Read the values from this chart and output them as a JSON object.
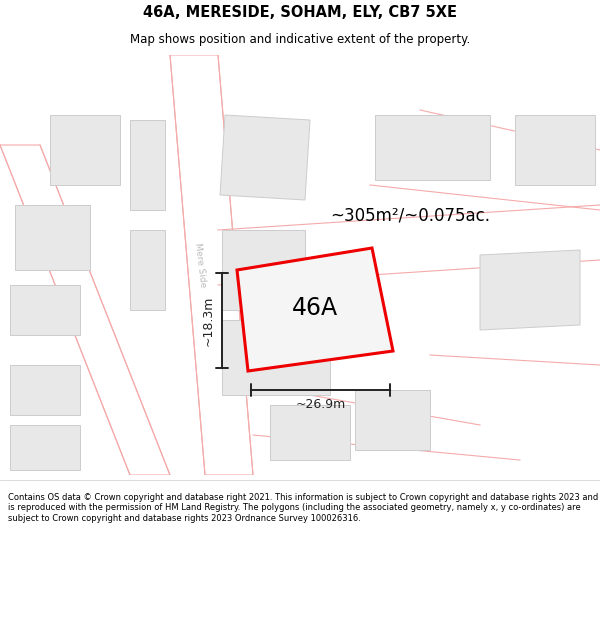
{
  "title": "46A, MERESIDE, SOHAM, ELY, CB7 5XE",
  "subtitle": "Map shows position and indicative extent of the property.",
  "footer": "Contains OS data © Crown copyright and database right 2021. This information is subject to Crown copyright and database rights 2023 and is reproduced with the permission of HM Land Registry. The polygons (including the associated geometry, namely x, y co-ordinates) are subject to Crown copyright and database rights 2023 Ordnance Survey 100026316.",
  "area_label": "~305m²/~0.075ac.",
  "width_label": "~26.9m",
  "height_label": "~18.3m",
  "plot_label": "46A",
  "street_label": "Mere Side",
  "bg_color": "#f7f7f7",
  "road_color": "#ffffff",
  "road_edge_color": "#f5aaaa",
  "building_fill": "#e8e8e8",
  "building_edge": "#cccccc",
  "plot_fill": "#f5f5f5",
  "plot_edge": "#ee0000",
  "dim_color": "#222222"
}
